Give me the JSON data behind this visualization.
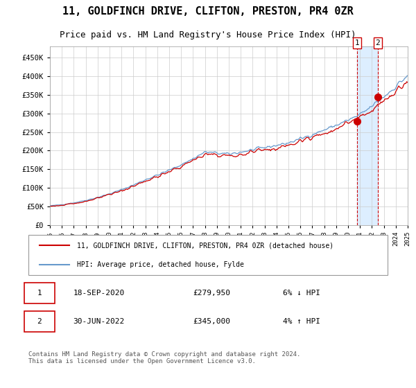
{
  "title": "11, GOLDFINCH DRIVE, CLIFTON, PRESTON, PR4 0ZR",
  "subtitle": "Price paid vs. HM Land Registry's House Price Index (HPI)",
  "legend_line1": "11, GOLDFINCH DRIVE, CLIFTON, PRESTON, PR4 0ZR (detached house)",
  "legend_line2": "HPI: Average price, detached house, Fylde",
  "footer": "Contains HM Land Registry data © Crown copyright and database right 2024.\nThis data is licensed under the Open Government Licence v3.0.",
  "transaction1_date": "18-SEP-2020",
  "transaction1_price": 279950,
  "transaction1_label": "1",
  "transaction1_hpi": "6% ↓ HPI",
  "transaction2_date": "30-JUN-2022",
  "transaction2_price": 345000,
  "transaction2_label": "2",
  "transaction2_hpi": "4% ↑ HPI",
  "red_color": "#cc0000",
  "blue_color": "#6699cc",
  "highlight_color": "#ddeeff",
  "grid_color": "#cccccc",
  "bg_color": "#ffffff",
  "year_start": 1995,
  "year_end": 2025,
  "ylim_min": 0,
  "ylim_max": 480000,
  "yticks": [
    0,
    50000,
    100000,
    150000,
    200000,
    250000,
    300000,
    350000,
    400000,
    450000
  ]
}
